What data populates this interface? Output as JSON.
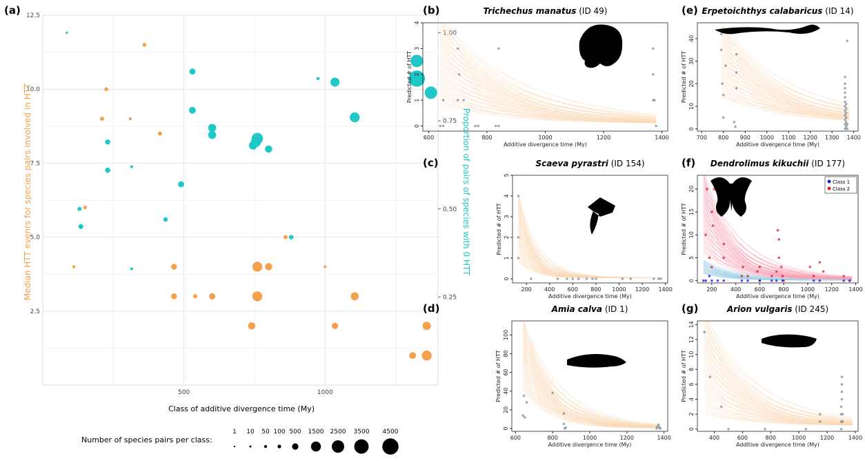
{
  "colors": {
    "orange": "#f4a04c",
    "teal": "#1fc7c7",
    "peach": "#fbd9b6",
    "pink": "#f7a0b4",
    "lightblue": "#a6d4e6",
    "pt": "#7f8c9a",
    "class1": "#1a1adb",
    "class2": "#e01a2a"
  },
  "panel_a": {
    "label": "(a)",
    "xlabel": "Class of additive divergence  time (My)",
    "ylabel_left": "Median HTT evenrs for species pairs involved in HTT",
    "ylabel_right": "Proportion of pairs of species with 0 HTT",
    "legend": {
      "title": "Number of species pairs per class:",
      "sizes": [
        "1",
        "10",
        "50",
        "100",
        "500",
        "1500",
        "2500",
        "3500",
        "4500"
      ]
    }
  },
  "chart_data": [
    {
      "id": "a",
      "type": "scatter",
      "xlim": [
        0,
        1400
      ],
      "ylim_left": [
        0,
        12.5
      ],
      "ylim_right": [
        0,
        1.05
      ],
      "x_ticks": [
        500,
        1000
      ],
      "yleft_ticks": [
        "2.5",
        "5.0",
        "7.5",
        "10.0",
        "12.5"
      ],
      "yright_ticks": [
        "0.25",
        "0.50",
        "0.75",
        "1.00"
      ],
      "series": [
        {
          "name": "median",
          "axis": "left",
          "color": "orange",
          "points": [
            [
              110,
              4,
              60
            ],
            [
              150,
              6,
              100
            ],
            [
              210,
              9,
              150
            ],
            [
              225,
              10,
              120
            ],
            [
              310,
              9,
              50
            ],
            [
              360,
              11.5,
              120
            ],
            [
              415,
              8.5,
              150
            ],
            [
              465,
              4,
              400
            ],
            [
              465,
              3,
              400
            ],
            [
              540,
              3,
              160
            ],
            [
              600,
              3,
              500
            ],
            [
              740,
              2,
              700
            ],
            [
              760,
              4,
              1500
            ],
            [
              760,
              3,
              1500
            ],
            [
              800,
              4,
              700
            ],
            [
              860,
              5,
              150
            ],
            [
              1000,
              4,
              40
            ],
            [
              1035,
              2,
              500
            ],
            [
              1105,
              3,
              900
            ],
            [
              1310,
              1,
              600
            ],
            [
              1360,
              2,
              1000
            ],
            [
              1360,
              1,
              1500
            ]
          ]
        },
        {
          "name": "proportion",
          "axis": "right",
          "color": "teal",
          "points": [
            [
              85,
              1.0,
              20
            ],
            [
              130,
              0.5,
              150
            ],
            [
              135,
              0.45,
              250
            ],
            [
              230,
              0.69,
              280
            ],
            [
              230,
              0.61,
              300
            ],
            [
              315,
              0.33,
              50
            ],
            [
              315,
              0.62,
              50
            ],
            [
              435,
              0.47,
              200
            ],
            [
              490,
              0.57,
              450
            ],
            [
              530,
              0.89,
              450
            ],
            [
              530,
              0.78,
              600
            ],
            [
              600,
              0.73,
              900
            ],
            [
              600,
              0.71,
              900
            ],
            [
              745,
              0.68,
              1000
            ],
            [
              755,
              0.69,
              1500
            ],
            [
              760,
              0.7,
              2000
            ],
            [
              800,
              0.67,
              700
            ],
            [
              880,
              0.42,
              200
            ],
            [
              975,
              0.87,
              60
            ],
            [
              1035,
              0.86,
              1200
            ],
            [
              1105,
              0.76,
              1500
            ],
            [
              1325,
              0.92,
              2500
            ],
            [
              1325,
              0.87,
              4500
            ],
            [
              1375,
              0.83,
              2500
            ]
          ]
        }
      ]
    },
    {
      "id": "b",
      "label": "(b)",
      "species": "Trichechus manatus",
      "tag": "(ID 49)",
      "type": "curves",
      "xlim": [
        580,
        1420
      ],
      "ylim": [
        -0.2,
        4
      ],
      "x_ticks": [
        600,
        800,
        1000,
        1200,
        1400
      ],
      "y_ticks": [
        0,
        1,
        2,
        3,
        4
      ],
      "xlabel": "Additive divergence time (My)",
      "ylabel": "Predicted # of HTT",
      "points": [
        [
          640,
          0
        ],
        [
          650,
          0
        ],
        [
          650,
          1
        ],
        [
          700,
          1
        ],
        [
          700,
          3
        ],
        [
          705,
          2
        ],
        [
          720,
          1
        ],
        [
          760,
          0
        ],
        [
          770,
          0
        ],
        [
          830,
          0
        ],
        [
          840,
          0
        ],
        [
          840,
          3
        ],
        [
          1370,
          1
        ],
        [
          1370,
          2
        ],
        [
          1370,
          3
        ],
        [
          1375,
          1
        ],
        [
          1380,
          0
        ]
      ]
    },
    {
      "id": "c",
      "label": "(c)",
      "species": "Scaeva pyrastri",
      "tag": "(ID 154)",
      "type": "curves",
      "xlim": [
        80,
        1420
      ],
      "ylim": [
        -0.2,
        5
      ],
      "x_ticks": [
        200,
        400,
        600,
        800,
        1000,
        1200,
        1400
      ],
      "y_ticks": [
        0,
        1,
        2,
        3,
        4,
        5
      ],
      "xlabel": "Additive divergence time (My)",
      "ylabel": "Predicted # of HTT",
      "points": [
        [
          130,
          4
        ],
        [
          130,
          2
        ],
        [
          130,
          1
        ],
        [
          240,
          0
        ],
        [
          470,
          0
        ],
        [
          550,
          0
        ],
        [
          600,
          0
        ],
        [
          650,
          0
        ],
        [
          720,
          0
        ],
        [
          770,
          0
        ],
        [
          800,
          0
        ],
        [
          1030,
          0
        ],
        [
          1100,
          0
        ],
        [
          1300,
          0
        ],
        [
          1340,
          0
        ],
        [
          1360,
          0
        ]
      ]
    },
    {
      "id": "d",
      "label": "(d)",
      "species": "Amia calva",
      "tag": "(ID 1)",
      "type": "curves",
      "xlim": [
        580,
        1420
      ],
      "ylim": [
        -3,
        115
      ],
      "x_ticks": [
        600,
        800,
        1000,
        1200,
        1400
      ],
      "y_ticks": [
        0,
        20,
        40,
        60,
        80,
        100
      ],
      "xlabel": "Additive divergence time (My)",
      "ylabel": "Predicted # of HTT",
      "points": [
        [
          640,
          14
        ],
        [
          645,
          35
        ],
        [
          650,
          12
        ],
        [
          660,
          28
        ],
        [
          800,
          38
        ],
        [
          860,
          16
        ],
        [
          860,
          5
        ],
        [
          865,
          0
        ],
        [
          870,
          1
        ],
        [
          1360,
          0
        ],
        [
          1365,
          2
        ],
        [
          1370,
          4
        ],
        [
          1375,
          1
        ],
        [
          1380,
          0
        ]
      ]
    },
    {
      "id": "e",
      "label": "(e)",
      "species": "Erpetoichthys calabaricus",
      "tag": "(ID 14)",
      "type": "curves",
      "xlim": [
        680,
        1420
      ],
      "ylim": [
        -1,
        47
      ],
      "x_ticks": [
        700,
        800,
        900,
        1000,
        1100,
        1200,
        1300,
        1400
      ],
      "y_ticks": [
        0,
        10,
        20,
        30,
        40
      ],
      "xlabel": "Additive divergence time (My)",
      "ylabel": "Predicted # of HTT",
      "points": [
        [
          790,
          42
        ],
        [
          790,
          35
        ],
        [
          795,
          20
        ],
        [
          800,
          15
        ],
        [
          800,
          5
        ],
        [
          810,
          28
        ],
        [
          850,
          3
        ],
        [
          855,
          1
        ],
        [
          860,
          18
        ],
        [
          860,
          25
        ],
        [
          860,
          33
        ],
        [
          860,
          44
        ],
        [
          1360,
          0
        ],
        [
          1360,
          2
        ],
        [
          1360,
          4
        ],
        [
          1360,
          6
        ],
        [
          1360,
          8
        ],
        [
          1360,
          10
        ],
        [
          1360,
          12
        ],
        [
          1360,
          14
        ],
        [
          1360,
          16
        ],
        [
          1360,
          18
        ],
        [
          1360,
          20
        ],
        [
          1360,
          23
        ],
        [
          1365,
          1
        ],
        [
          1365,
          3
        ],
        [
          1365,
          5
        ],
        [
          1365,
          7
        ],
        [
          1365,
          9
        ],
        [
          1365,
          11
        ],
        [
          1370,
          0
        ],
        [
          1370,
          2
        ],
        [
          1370,
          39
        ]
      ]
    },
    {
      "id": "f",
      "label": "(f)",
      "species": "Dendrolimus kikuchii",
      "tag": "(ID 177)",
      "type": "curves",
      "xlim": [
        80,
        1420
      ],
      "ylim": [
        -0.5,
        23
      ],
      "x_ticks": [
        200,
        400,
        600,
        800,
        1000,
        1200,
        1400
      ],
      "y_ticks": [
        0,
        5,
        10,
        15,
        20
      ],
      "xlabel": "Additive divergence time (My)",
      "ylabel": "Predicted # of HTT",
      "legend": [
        "Class 1",
        "Class 2"
      ],
      "points_class1": [
        [
          130,
          0
        ],
        [
          150,
          0
        ],
        [
          180,
          1
        ],
        [
          200,
          0
        ],
        [
          250,
          0
        ],
        [
          300,
          0
        ],
        [
          450,
          0
        ],
        [
          500,
          0
        ],
        [
          600,
          0
        ],
        [
          700,
          0
        ],
        [
          740,
          0
        ],
        [
          790,
          0
        ],
        [
          1050,
          0
        ],
        [
          1100,
          0
        ],
        [
          1300,
          0
        ],
        [
          1350,
          0
        ]
      ],
      "points_class2": [
        [
          150,
          10
        ],
        [
          160,
          20
        ],
        [
          180,
          5
        ],
        [
          200,
          15
        ],
        [
          200,
          3
        ],
        [
          210,
          12
        ],
        [
          220,
          20
        ],
        [
          300,
          8
        ],
        [
          300,
          5
        ],
        [
          450,
          1
        ],
        [
          460,
          3
        ],
        [
          500,
          1
        ],
        [
          580,
          2
        ],
        [
          600,
          3
        ],
        [
          600,
          0
        ],
        [
          700,
          1
        ],
        [
          740,
          2
        ],
        [
          750,
          11
        ],
        [
          760,
          9
        ],
        [
          760,
          5
        ],
        [
          780,
          3
        ],
        [
          790,
          1
        ],
        [
          800,
          0
        ],
        [
          1020,
          3
        ],
        [
          1050,
          1
        ],
        [
          1100,
          4
        ],
        [
          1130,
          2
        ],
        [
          1300,
          1
        ],
        [
          1350,
          0
        ]
      ]
    },
    {
      "id": "g",
      "label": "(g)",
      "species": "Arion vulgaris",
      "tag": "(ID 245)",
      "type": "curves",
      "xlim": [
        280,
        1420
      ],
      "ylim": [
        -0.3,
        14.5
      ],
      "x_ticks": [
        400,
        600,
        800,
        1000,
        1200,
        1400
      ],
      "y_ticks": [
        0,
        2,
        4,
        6,
        8,
        10,
        12,
        14
      ],
      "xlabel": "Additive divergence time (My)",
      "ylabel": "Predicted # of HTT",
      "points": [
        [
          330,
          13
        ],
        [
          370,
          7
        ],
        [
          450,
          3
        ],
        [
          500,
          0
        ],
        [
          760,
          0
        ],
        [
          1050,
          0
        ],
        [
          1150,
          1
        ],
        [
          1150,
          2
        ],
        [
          1300,
          0
        ],
        [
          1300,
          1
        ],
        [
          1300,
          2
        ],
        [
          1300,
          3
        ],
        [
          1305,
          4
        ],
        [
          1305,
          5
        ],
        [
          1305,
          6
        ],
        [
          1305,
          7
        ],
        [
          1310,
          1
        ],
        [
          1310,
          2
        ]
      ]
    }
  ]
}
